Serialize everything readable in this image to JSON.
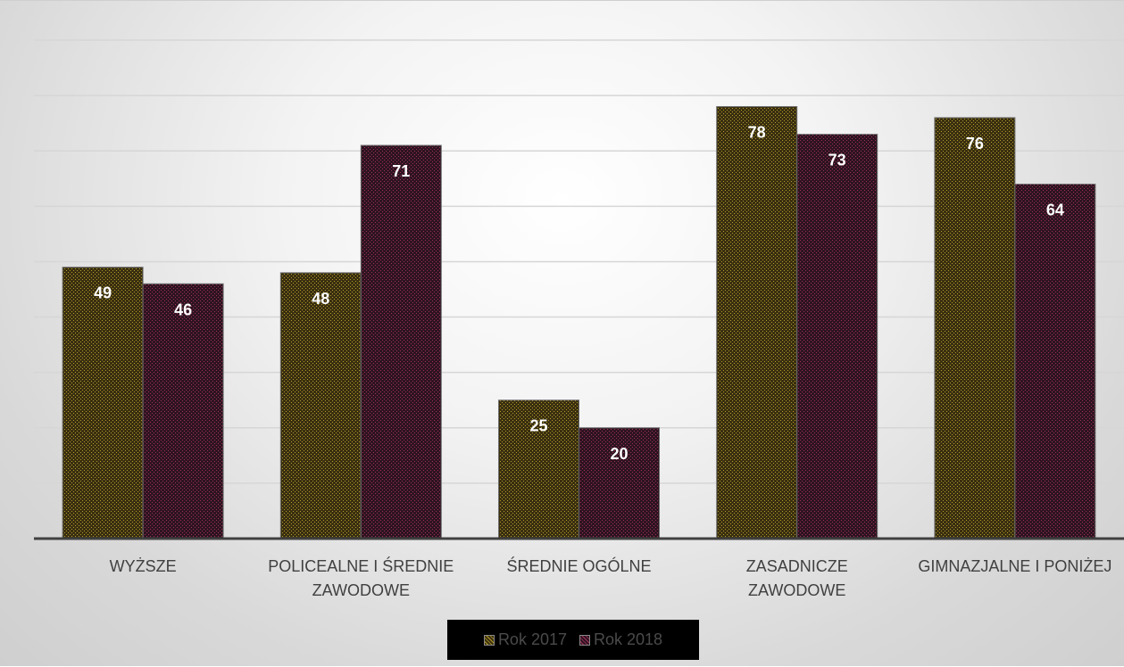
{
  "chart_data": {
    "type": "bar",
    "categories": [
      [
        "WYŻSZE"
      ],
      [
        "POLICEALNE I ŚREDNIE",
        "ZAWODOWE"
      ],
      [
        "ŚREDNIE OGÓLNE"
      ],
      [
        "ZASADNICZE",
        "ZAWODOWE"
      ],
      [
        "GIMNAZJALNE I PONIŻEJ"
      ]
    ],
    "series": [
      {
        "name": "Rok 2017",
        "values": [
          49,
          48,
          25,
          78,
          76
        ],
        "color": "#3a3010",
        "dot_color": "#b59a2a"
      },
      {
        "name": "Rok 2018",
        "values": [
          46,
          71,
          20,
          73,
          64
        ],
        "color": "#2e1420",
        "dot_color": "#a0305a"
      }
    ],
    "ylim": [
      0,
      90
    ],
    "gridlines": [
      10,
      20,
      30,
      40,
      50,
      60,
      70,
      80,
      90
    ],
    "grid": true,
    "data_labels": true,
    "legend_position": "bottom",
    "title": "",
    "xlabel": "",
    "ylabel": ""
  }
}
